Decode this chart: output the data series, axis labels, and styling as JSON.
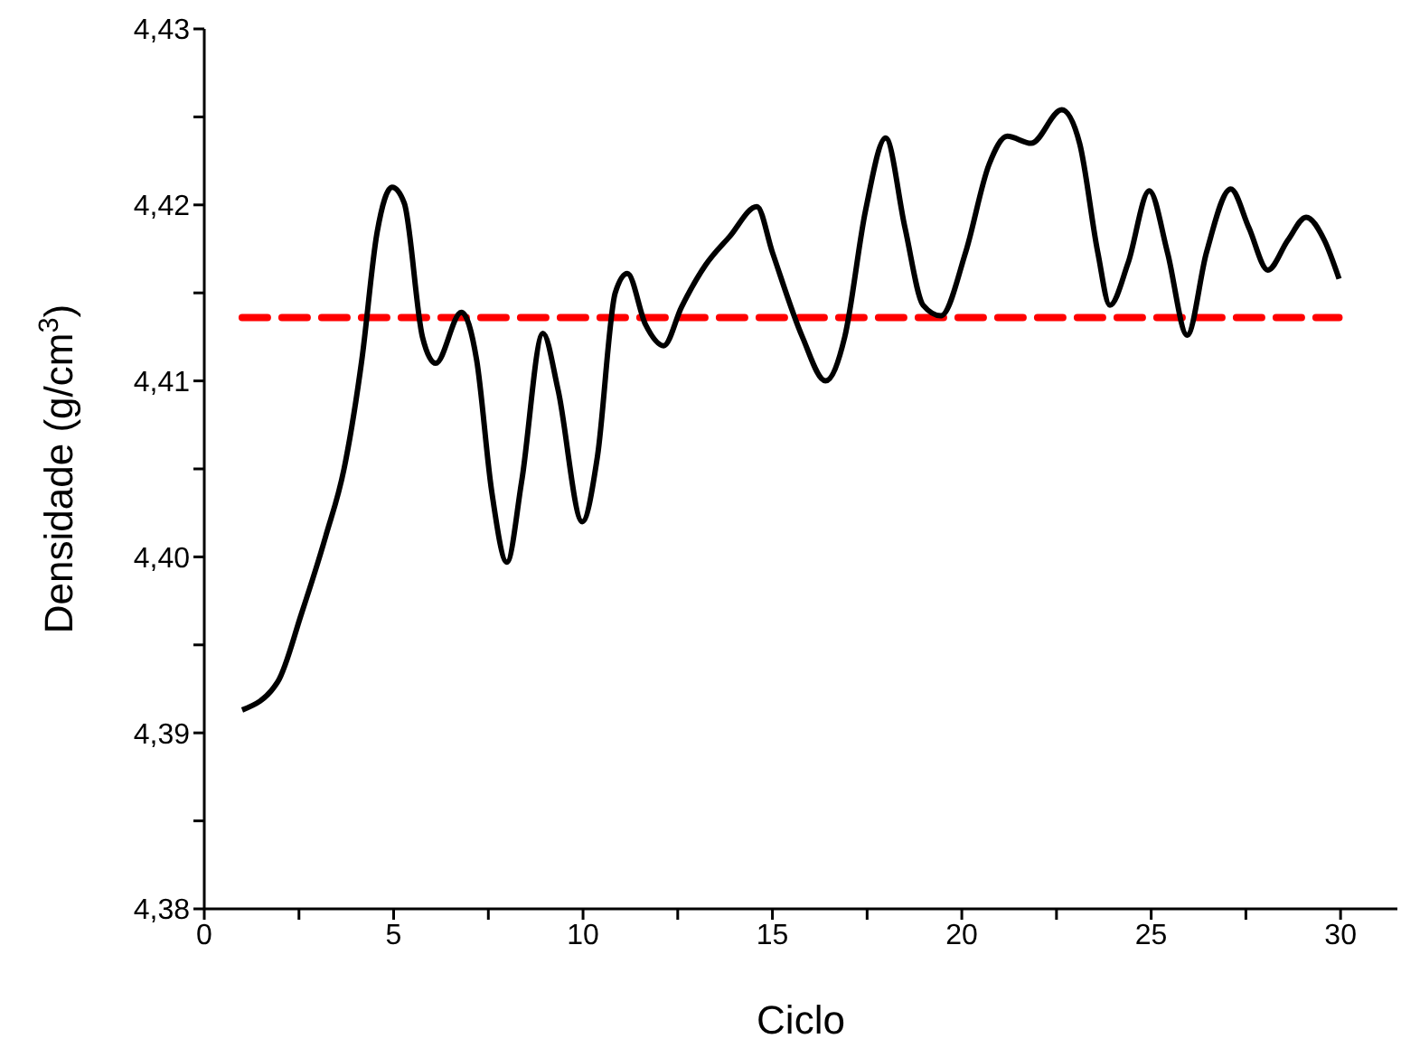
{
  "chart_data": {
    "type": "line",
    "xlabel": "Ciclo",
    "ylabel": "Densidade (g/cm$^{3}$)",
    "series": [
      {
        "color": "#000000",
        "x": [
          1.0,
          1.94,
          2.57,
          3.21,
          3.69,
          4.16,
          4.56,
          4.96,
          5.28,
          5.76,
          6.11,
          6.79,
          7.19,
          7.59,
          7.99,
          8.38,
          8.94,
          9.34,
          9.98,
          10.38,
          10.85,
          11.17,
          11.65,
          12.13,
          12.6,
          13.24,
          13.87,
          14.59,
          15.0,
          15.79,
          16.4,
          16.91,
          17.46,
          17.99,
          18.5,
          18.98,
          19.45,
          20.1,
          20.72,
          21.2,
          21.83,
          22.64,
          23.11,
          23.59,
          23.91,
          24.39,
          24.95,
          25.43,
          25.95,
          26.46,
          27.1,
          27.58,
          28.08,
          28.61,
          29.09,
          29.57,
          29.96
        ],
        "values": [
          4.3913,
          4.3929,
          4.3968,
          4.4012,
          4.405,
          4.4112,
          4.4184,
          4.421,
          4.4201,
          4.4125,
          4.411,
          4.4139,
          4.4112,
          4.4037,
          4.3997,
          4.4043,
          4.4127,
          4.4095,
          4.402,
          4.4057,
          4.415,
          4.4161,
          4.4132,
          4.412,
          4.4142,
          4.4166,
          4.4182,
          4.4199,
          4.4173,
          4.4125,
          4.41,
          4.4125,
          4.4197,
          4.4238,
          4.4187,
          4.4143,
          4.4137,
          4.4173,
          4.4223,
          4.4239,
          4.4235,
          4.4254,
          4.4235,
          4.4173,
          4.4143,
          4.4167,
          4.4208,
          4.4173,
          4.4126,
          4.4173,
          4.4209,
          4.4187,
          4.4163,
          4.418,
          4.4193,
          4.418,
          4.4158
        ]
      }
    ],
    "ref_lines": [
      {
        "axis": "y",
        "value": 4.4136,
        "color": "#ff0000",
        "line_style": "dashed"
      }
    ],
    "xlim": [
      0,
      31.5
    ],
    "xticks": [
      0,
      {
        "value": 2.5,
        "label": null
      },
      5,
      {
        "value": 7.5,
        "label": null
      },
      10,
      {
        "value": 12.5,
        "label": null
      },
      15,
      {
        "value": 17.5,
        "label": null
      },
      20,
      {
        "value": 22.5,
        "label": null
      },
      25,
      {
        "value": 27.5,
        "label": null
      },
      30
    ],
    "ylim": [
      4.38,
      4.43
    ],
    "yticks": [
      {
        "value": 4.38,
        "label": "4,38"
      },
      {
        "value": 4.385,
        "label": null
      },
      {
        "value": 4.39,
        "label": "4,39"
      },
      {
        "value": 4.395,
        "label": null
      },
      {
        "value": 4.4,
        "label": "4,40"
      },
      {
        "value": 4.405,
        "label": null
      },
      {
        "value": 4.41,
        "label": "4,41"
      },
      {
        "value": 4.415,
        "label": null
      },
      {
        "value": 4.42,
        "label": "4,42"
      },
      {
        "value": 4.425,
        "label": null
      },
      {
        "value": 4.43,
        "label": "4,43"
      }
    ],
    "grid": false,
    "legend": false,
    "marker": "none",
    "line_style": "solid"
  }
}
